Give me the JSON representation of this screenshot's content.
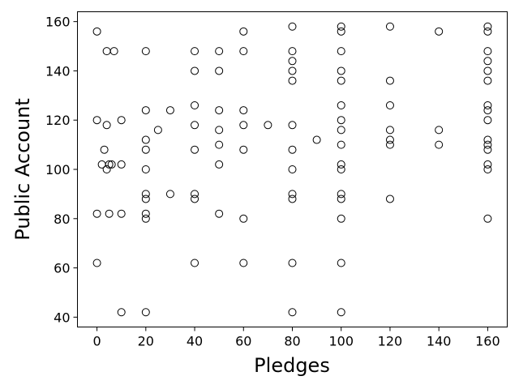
{
  "chart_data": {
    "type": "scatter",
    "title": "",
    "xlabel": "Pledges",
    "ylabel": "Public Account",
    "xlim": [
      -8,
      168
    ],
    "ylim": [
      36,
      164
    ],
    "xticks": [
      0,
      20,
      40,
      60,
      80,
      100,
      120,
      140,
      160
    ],
    "yticks": [
      40,
      60,
      80,
      100,
      120,
      140,
      160
    ],
    "grid": false,
    "marker": "open-circle",
    "points": [
      [
        0,
        156
      ],
      [
        0,
        120
      ],
      [
        0,
        82
      ],
      [
        0,
        62
      ],
      [
        2,
        102
      ],
      [
        3,
        108
      ],
      [
        4,
        148
      ],
      [
        4,
        118
      ],
      [
        4,
        100
      ],
      [
        5,
        82
      ],
      [
        5,
        102
      ],
      [
        6,
        102
      ],
      [
        7,
        148
      ],
      [
        10,
        120
      ],
      [
        10,
        102
      ],
      [
        10,
        82
      ],
      [
        10,
        42
      ],
      [
        20,
        148
      ],
      [
        20,
        124
      ],
      [
        20,
        112
      ],
      [
        20,
        108
      ],
      [
        20,
        100
      ],
      [
        20,
        90
      ],
      [
        20,
        88
      ],
      [
        20,
        82
      ],
      [
        20,
        80
      ],
      [
        20,
        42
      ],
      [
        25,
        116
      ],
      [
        30,
        124
      ],
      [
        30,
        90
      ],
      [
        40,
        148
      ],
      [
        40,
        140
      ],
      [
        40,
        126
      ],
      [
        40,
        118
      ],
      [
        40,
        108
      ],
      [
        40,
        90
      ],
      [
        40,
        88
      ],
      [
        40,
        62
      ],
      [
        50,
        148
      ],
      [
        50,
        140
      ],
      [
        50,
        124
      ],
      [
        50,
        116
      ],
      [
        50,
        110
      ],
      [
        50,
        102
      ],
      [
        50,
        82
      ],
      [
        60,
        156
      ],
      [
        60,
        148
      ],
      [
        60,
        124
      ],
      [
        60,
        118
      ],
      [
        60,
        108
      ],
      [
        60,
        80
      ],
      [
        60,
        62
      ],
      [
        70,
        118
      ],
      [
        80,
        158
      ],
      [
        80,
        148
      ],
      [
        80,
        144
      ],
      [
        80,
        140
      ],
      [
        80,
        136
      ],
      [
        80,
        118
      ],
      [
        80,
        108
      ],
      [
        80,
        100
      ],
      [
        80,
        90
      ],
      [
        80,
        88
      ],
      [
        80,
        62
      ],
      [
        80,
        42
      ],
      [
        90,
        112
      ],
      [
        100,
        158
      ],
      [
        100,
        156
      ],
      [
        100,
        148
      ],
      [
        100,
        140
      ],
      [
        100,
        136
      ],
      [
        100,
        126
      ],
      [
        100,
        120
      ],
      [
        100,
        116
      ],
      [
        100,
        110
      ],
      [
        100,
        102
      ],
      [
        100,
        100
      ],
      [
        100,
        90
      ],
      [
        100,
        88
      ],
      [
        100,
        80
      ],
      [
        100,
        62
      ],
      [
        100,
        42
      ],
      [
        120,
        158
      ],
      [
        120,
        136
      ],
      [
        120,
        126
      ],
      [
        120,
        116
      ],
      [
        120,
        112
      ],
      [
        120,
        110
      ],
      [
        120,
        88
      ],
      [
        140,
        156
      ],
      [
        140,
        116
      ],
      [
        140,
        110
      ],
      [
        160,
        158
      ],
      [
        160,
        156
      ],
      [
        160,
        148
      ],
      [
        160,
        144
      ],
      [
        160,
        140
      ],
      [
        160,
        136
      ],
      [
        160,
        126
      ],
      [
        160,
        124
      ],
      [
        160,
        120
      ],
      [
        160,
        112
      ],
      [
        160,
        110
      ],
      [
        160,
        108
      ],
      [
        160,
        102
      ],
      [
        160,
        100
      ],
      [
        160,
        80
      ]
    ]
  }
}
